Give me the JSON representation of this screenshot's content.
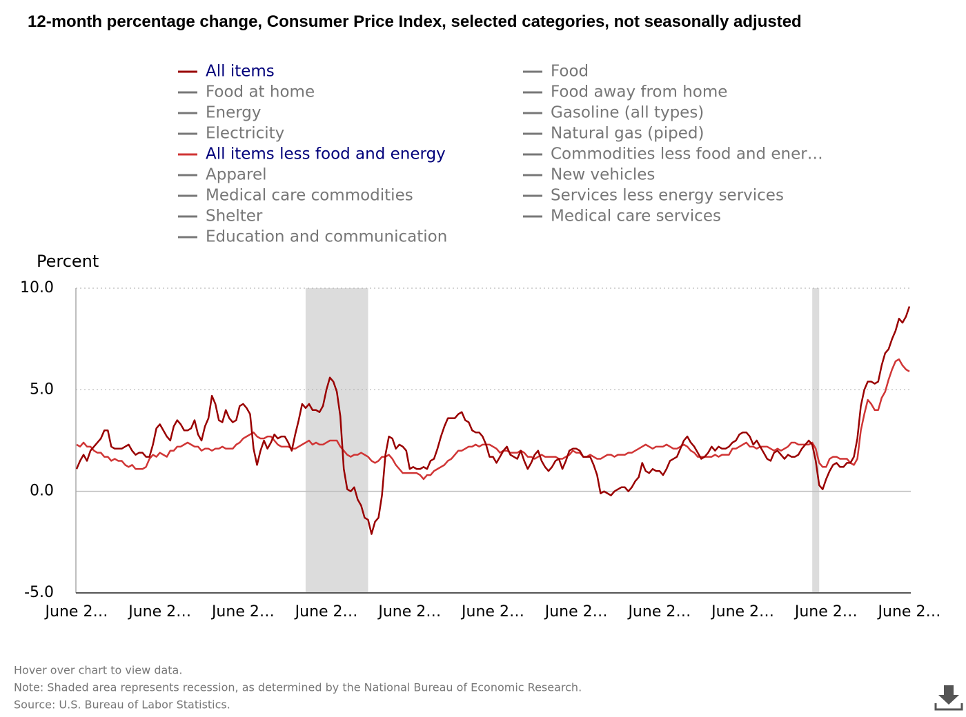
{
  "chart_data": {
    "type": "line",
    "title": "12-month percentage change, Consumer Price Index, selected categories, not seasonally adjusted",
    "y_label": "Percent",
    "categories": [
      "June 2…",
      null,
      null,
      null,
      null,
      null,
      null,
      null,
      null,
      null,
      null,
      null,
      null,
      null,
      null,
      null,
      null,
      null,
      null,
      null,
      null,
      null,
      null,
      null,
      "June 2…",
      null,
      null,
      null,
      null,
      null,
      null,
      null,
      null,
      null,
      null,
      null,
      null,
      null,
      null,
      null,
      null,
      null,
      null,
      null,
      null,
      null,
      null,
      null,
      "June 2…",
      null,
      null,
      null,
      null,
      null,
      null,
      null,
      null,
      null,
      null,
      null,
      null,
      null,
      null,
      null,
      null,
      null,
      null,
      null,
      null,
      null,
      null,
      null,
      "June 2…",
      null,
      null,
      null,
      null,
      null,
      null,
      null,
      null,
      null,
      null,
      null,
      null,
      null,
      null,
      null,
      null,
      null,
      null,
      null,
      null,
      null,
      null,
      null,
      "June 2…",
      null,
      null,
      null,
      null,
      null,
      null,
      null,
      null,
      null,
      null,
      null,
      null,
      null,
      null,
      null,
      null,
      null,
      null,
      null,
      null,
      null,
      null,
      null,
      "June 2…",
      null,
      null,
      null,
      null,
      null,
      null,
      null,
      null,
      null,
      null,
      null,
      null,
      null,
      null,
      null,
      null,
      null,
      null,
      null,
      null,
      null,
      null,
      null,
      "June 2…",
      null,
      null,
      null,
      null,
      null,
      null,
      null,
      null,
      null,
      null,
      null,
      null,
      null,
      null,
      null,
      null,
      null,
      null,
      null,
      null,
      null,
      null,
      null,
      "June 2…",
      null,
      null,
      null,
      null,
      null,
      null,
      null,
      null,
      null,
      null,
      null,
      null,
      null,
      null,
      null,
      null,
      null,
      null,
      null,
      null,
      null,
      null,
      null,
      "June 2…",
      null,
      null,
      null,
      null,
      null,
      null,
      null,
      null,
      null,
      null,
      null,
      null,
      null,
      null,
      null,
      null,
      null,
      null,
      null,
      null,
      null,
      null,
      null,
      "June 2…",
      null,
      null,
      null,
      null,
      null,
      null,
      null,
      null,
      null,
      null,
      null,
      null,
      null,
      null,
      null,
      null,
      null,
      null,
      null,
      null,
      null,
      null,
      null,
      "June 2…"
    ],
    "series": [
      {
        "name": "All items",
        "color": "#990000",
        "values": [
          1.1,
          1.5,
          1.8,
          1.5,
          2.0,
          2.2,
          2.4,
          2.6,
          3.0,
          3.0,
          2.2,
          2.1,
          2.1,
          2.1,
          2.2,
          2.3,
          2.0,
          1.8,
          1.9,
          1.9,
          1.7,
          1.7,
          2.3,
          3.1,
          3.3,
          3.0,
          2.7,
          2.5,
          3.2,
          3.5,
          3.3,
          3.0,
          3.0,
          3.1,
          3.5,
          2.8,
          2.5,
          3.2,
          3.6,
          4.7,
          4.3,
          3.5,
          3.4,
          4.0,
          3.6,
          3.4,
          3.5,
          4.2,
          4.3,
          4.1,
          3.8,
          2.1,
          1.3,
          2.0,
          2.5,
          2.1,
          2.4,
          2.8,
          2.6,
          2.7,
          2.7,
          2.4,
          2.0,
          2.8,
          3.5,
          4.3,
          4.1,
          4.3,
          4.0,
          4.0,
          3.9,
          4.2,
          5.0,
          5.6,
          5.4,
          4.9,
          3.7,
          1.1,
          0.1,
          0.0,
          0.2,
          -0.4,
          -0.7,
          -1.3,
          -1.4,
          -2.1,
          -1.5,
          -1.3,
          -0.2,
          1.8,
          2.7,
          2.6,
          2.1,
          2.3,
          2.2,
          2.0,
          1.1,
          1.2,
          1.1,
          1.1,
          1.2,
          1.1,
          1.5,
          1.6,
          2.1,
          2.7,
          3.2,
          3.6,
          3.6,
          3.6,
          3.8,
          3.9,
          3.5,
          3.4,
          3.0,
          2.9,
          2.9,
          2.7,
          2.3,
          1.7,
          1.7,
          1.4,
          1.7,
          2.0,
          2.2,
          1.8,
          1.7,
          1.6,
          2.0,
          1.5,
          1.1,
          1.4,
          1.8,
          2.0,
          1.5,
          1.2,
          1.0,
          1.2,
          1.5,
          1.6,
          1.1,
          1.5,
          2.0,
          2.1,
          2.1,
          2.0,
          1.7,
          1.7,
          1.7,
          1.3,
          0.8,
          -0.1,
          0.0,
          -0.1,
          -0.2,
          0.0,
          0.1,
          0.2,
          0.2,
          0.0,
          0.2,
          0.5,
          0.7,
          1.4,
          1.0,
          0.9,
          1.1,
          1.0,
          1.0,
          0.8,
          1.1,
          1.5,
          1.6,
          1.7,
          2.1,
          2.5,
          2.7,
          2.4,
          2.2,
          1.9,
          1.6,
          1.7,
          1.9,
          2.2,
          2.0,
          2.2,
          2.1,
          2.1,
          2.2,
          2.4,
          2.5,
          2.8,
          2.9,
          2.9,
          2.7,
          2.3,
          2.5,
          2.2,
          1.9,
          1.6,
          1.5,
          1.9,
          2.0,
          1.8,
          1.6,
          1.8,
          1.7,
          1.7,
          1.8,
          2.1,
          2.3,
          2.5,
          2.3,
          1.5,
          0.3,
          0.1,
          0.6,
          1.0,
          1.3,
          1.4,
          1.2,
          1.2,
          1.4,
          1.4,
          1.7,
          2.6,
          4.2,
          5.0,
          5.4,
          5.4,
          5.3,
          5.4,
          6.2,
          6.8,
          7.0,
          7.5,
          7.9,
          8.5,
          8.3,
          8.6,
          9.1
        ]
      },
      {
        "name": "All items less food and energy",
        "color": "#d03535",
        "values": [
          2.3,
          2.2,
          2.4,
          2.2,
          2.2,
          2.0,
          1.9,
          1.9,
          1.7,
          1.7,
          1.5,
          1.6,
          1.5,
          1.5,
          1.3,
          1.2,
          1.3,
          1.1,
          1.1,
          1.1,
          1.2,
          1.6,
          1.8,
          1.7,
          1.9,
          1.8,
          1.7,
          2.0,
          2.0,
          2.2,
          2.2,
          2.3,
          2.4,
          2.3,
          2.2,
          2.2,
          2.0,
          2.1,
          2.1,
          2.0,
          2.1,
          2.1,
          2.2,
          2.1,
          2.1,
          2.1,
          2.3,
          2.4,
          2.6,
          2.7,
          2.8,
          2.9,
          2.7,
          2.6,
          2.6,
          2.7,
          2.7,
          2.5,
          2.3,
          2.2,
          2.2,
          2.2,
          2.1,
          2.1,
          2.2,
          2.3,
          2.4,
          2.5,
          2.3,
          2.4,
          2.3,
          2.3,
          2.4,
          2.5,
          2.5,
          2.5,
          2.2,
          2.0,
          1.8,
          1.7,
          1.8,
          1.8,
          1.9,
          1.8,
          1.7,
          1.5,
          1.4,
          1.5,
          1.7,
          1.7,
          1.8,
          1.6,
          1.3,
          1.1,
          0.9,
          0.9,
          0.9,
          0.9,
          0.9,
          0.8,
          0.6,
          0.8,
          0.8,
          1.0,
          1.1,
          1.2,
          1.3,
          1.5,
          1.6,
          1.8,
          2.0,
          2.0,
          2.1,
          2.2,
          2.2,
          2.3,
          2.2,
          2.3,
          2.3,
          2.3,
          2.2,
          2.1,
          1.9,
          2.0,
          2.0,
          1.9,
          1.9,
          1.9,
          2.0,
          1.9,
          1.7,
          1.7,
          1.6,
          1.7,
          1.8,
          1.7,
          1.7,
          1.7,
          1.7,
          1.6,
          1.6,
          1.7,
          1.8,
          2.0,
          1.9,
          1.9,
          1.7,
          1.7,
          1.8,
          1.7,
          1.6,
          1.6,
          1.7,
          1.8,
          1.8,
          1.7,
          1.8,
          1.8,
          1.8,
          1.9,
          1.9,
          2.0,
          2.1,
          2.2,
          2.3,
          2.2,
          2.1,
          2.2,
          2.2,
          2.2,
          2.3,
          2.2,
          2.1,
          2.1,
          2.2,
          2.3,
          2.2,
          2.0,
          1.9,
          1.7,
          1.7,
          1.7,
          1.7,
          1.7,
          1.8,
          1.7,
          1.8,
          1.8,
          1.8,
          2.1,
          2.1,
          2.2,
          2.3,
          2.4,
          2.2,
          2.2,
          2.1,
          2.2,
          2.2,
          2.2,
          2.1,
          2.0,
          2.1,
          2.0,
          2.1,
          2.2,
          2.4,
          2.4,
          2.3,
          2.3,
          2.3,
          2.3,
          2.4,
          2.1,
          1.4,
          1.2,
          1.2,
          1.6,
          1.7,
          1.7,
          1.6,
          1.6,
          1.6,
          1.4,
          1.3,
          1.6,
          3.0,
          3.8,
          4.5,
          4.3,
          4.0,
          4.0,
          4.6,
          4.9,
          5.5,
          6.0,
          6.4,
          6.5,
          6.2,
          6.0,
          5.9
        ]
      }
    ],
    "other_legend_entries": [
      "Food",
      "Food at home",
      "Food away from home",
      "Energy",
      "Gasoline (all types)",
      "Electricity",
      "Natural gas (piped)",
      "Commodities less food and ener…",
      "Apparel",
      "New vehicles",
      "Medical care commodities",
      "Services less energy services",
      "Shelter",
      "Medical care services",
      "Education and communication"
    ],
    "shaded_regions": [
      [
        66,
        84
      ],
      [
        212,
        214
      ]
    ],
    "ylim": [
      -5,
      10
    ],
    "yticks": [
      {
        "value": -5,
        "label": "-5.0"
      },
      {
        "value": 0,
        "label": "0.0"
      },
      {
        "value": 5,
        "label": "5.0"
      },
      {
        "value": 10,
        "label": "10.0"
      }
    ],
    "grid": true,
    "notes": [
      "Hover over chart to view data.",
      "Note: Shaded area represents recession, as determined by the National Bureau of Economic Research.",
      "Source: U.S. Bureau of Labor Statistics."
    ]
  }
}
